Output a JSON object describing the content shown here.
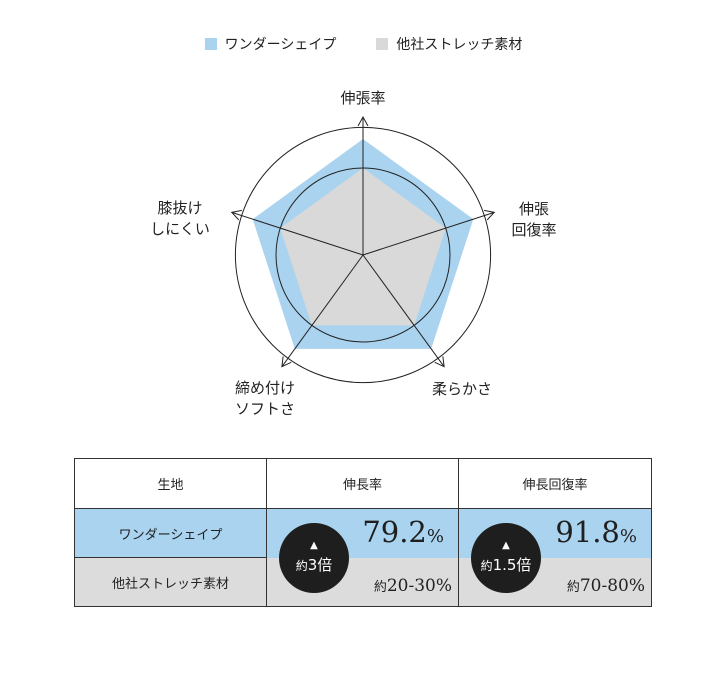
{
  "colors": {
    "wonder": "#a9d3ef",
    "other": "#d9d9d9",
    "text": "#222222",
    "badge": "#1e1e1e"
  },
  "legend": [
    {
      "label": "ワンダーシェイプ",
      "color": "#a9d3ef"
    },
    {
      "label": "他社ストレッチ素材",
      "color": "#d9d9d9"
    }
  ],
  "chart_data": {
    "type": "radar",
    "axes": [
      {
        "label": [
          "伸張率"
        ]
      },
      {
        "label": [
          "伸張",
          "回復率"
        ]
      },
      {
        "label": [
          "柔らかさ"
        ]
      },
      {
        "label": [
          "締め付け",
          "ソフトさ"
        ]
      },
      {
        "label": [
          "膝抜け",
          "しにくい"
        ]
      }
    ],
    "rings": 2,
    "series": [
      {
        "name": "ワンダーシェイプ",
        "values": [
          0.8,
          0.8,
          0.8,
          0.8,
          0.8
        ]
      },
      {
        "name": "他社ストレッチ素材",
        "values": [
          0.6,
          0.6,
          0.6,
          0.6,
          0.6
        ]
      }
    ],
    "grid": false,
    "legend_position": "top"
  },
  "table": {
    "headers": [
      "生地",
      "伸長率",
      "伸長回復率"
    ],
    "rows": [
      {
        "label": "ワンダーシェイプ",
        "values": [
          "79.2",
          "91.8"
        ],
        "unit": "%"
      },
      {
        "label": "他社ストレッチ素材",
        "values": [
          "20-30%",
          "70-80%"
        ],
        "prefix": "約"
      }
    ],
    "badges": [
      {
        "arrow": "▲",
        "prefix": "約",
        "value": "3倍"
      },
      {
        "arrow": "▲",
        "prefix": "約",
        "value": "1.5倍"
      }
    ]
  }
}
